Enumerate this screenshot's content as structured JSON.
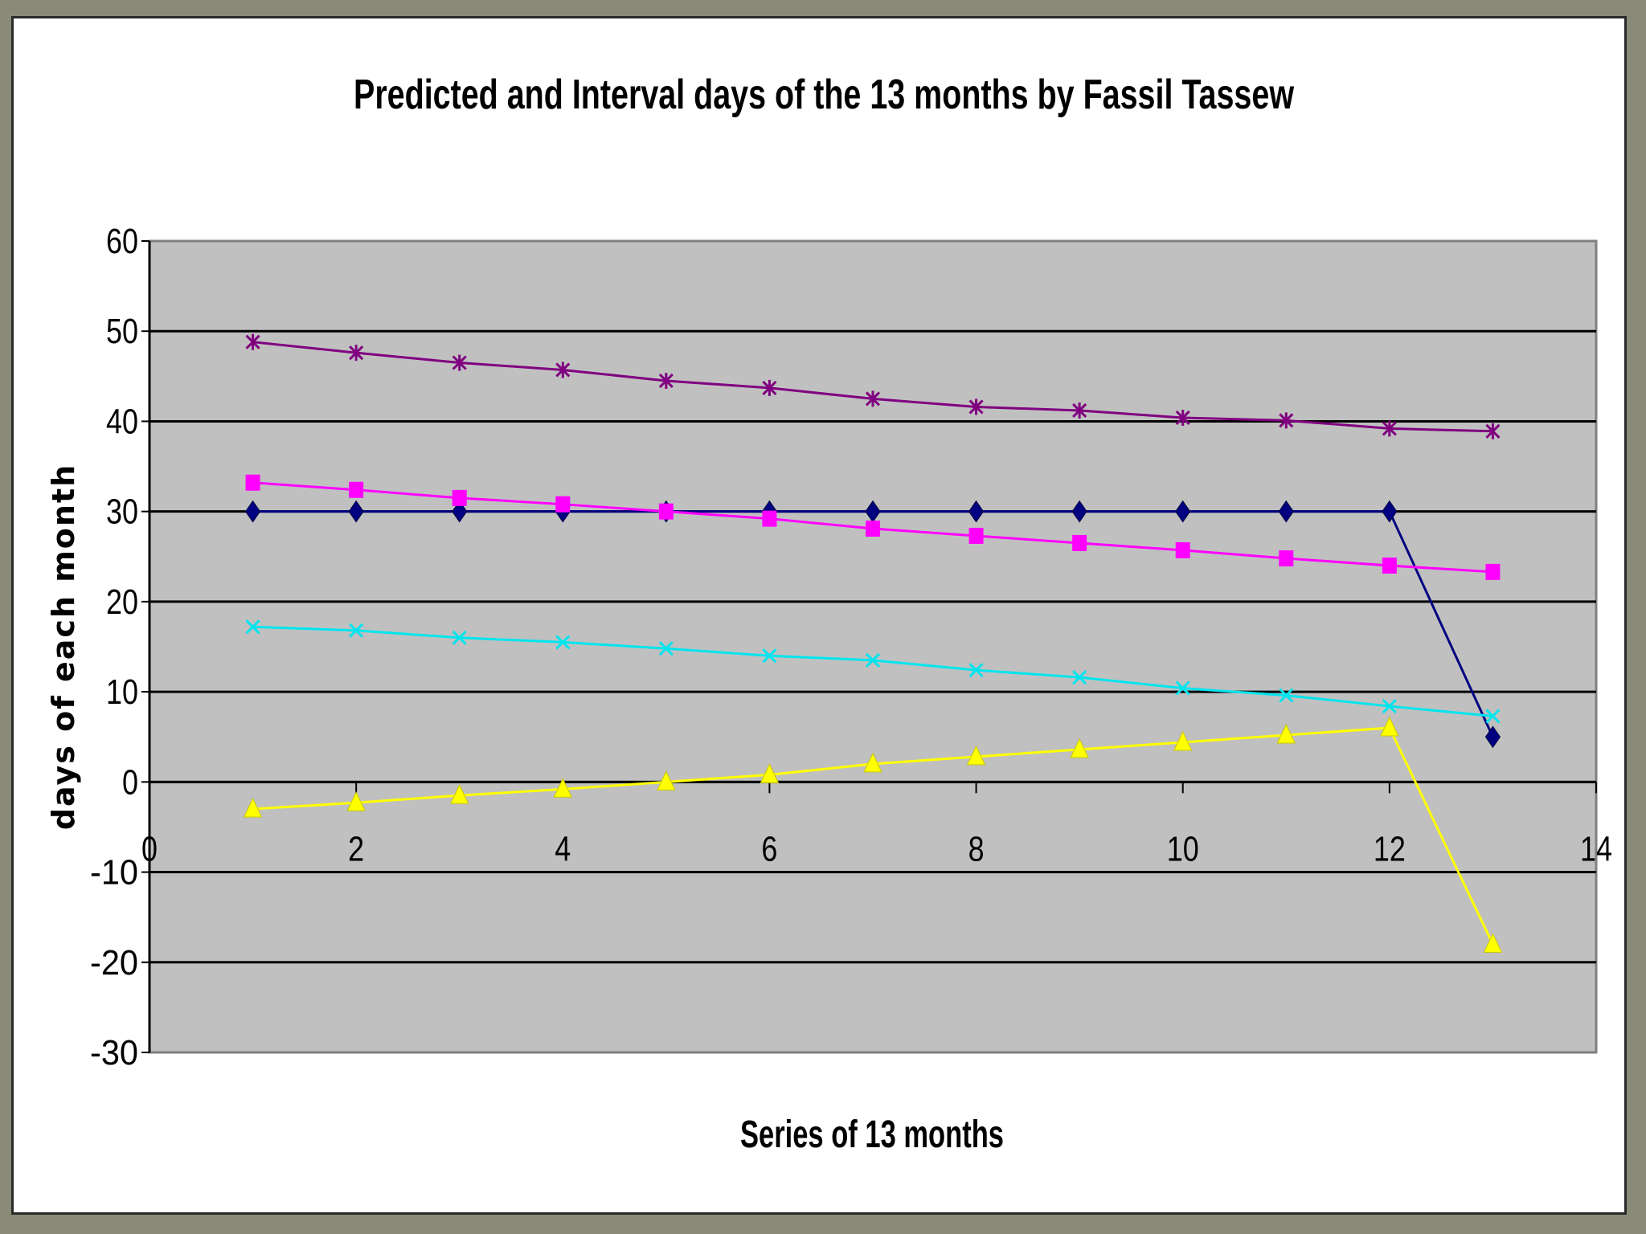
{
  "chart_data": {
    "type": "line",
    "title": "Predicted  and Interval days of the  13 months by Fassil Tassew",
    "xlabel": "Series of 13 months",
    "ylabel": "days of each month",
    "xlim": [
      0,
      14
    ],
    "ylim": [
      -30,
      60
    ],
    "x_ticks": [
      0,
      2,
      4,
      6,
      8,
      10,
      12,
      14
    ],
    "y_ticks": [
      -30,
      -20,
      -10,
      0,
      10,
      20,
      30,
      40,
      50,
      60
    ],
    "grid": true,
    "legend": "none",
    "plot_background": "#c0c0c0",
    "x": [
      1,
      2,
      3,
      4,
      5,
      6,
      7,
      8,
      9,
      10,
      11,
      12,
      13
    ],
    "series": [
      {
        "color": "#000080",
        "marker": "diamond",
        "values": [
          30,
          30,
          30,
          30,
          30,
          30,
          30,
          30,
          30,
          30,
          30,
          30,
          5
        ]
      },
      {
        "color": "#ff00ff",
        "marker": "square",
        "values": [
          33.2,
          32.4,
          31.5,
          30.8,
          30.0,
          29.2,
          28.1,
          27.3,
          26.5,
          25.7,
          24.8,
          24.0,
          23.3
        ]
      },
      {
        "color": "#ffff00",
        "marker": "triangle",
        "values": [
          -3.0,
          -2.3,
          -1.5,
          -0.8,
          0.0,
          0.8,
          2.0,
          2.8,
          3.6,
          4.4,
          5.2,
          6.0,
          -18.0
        ]
      },
      {
        "color": "#00e5ee",
        "marker": "x",
        "values": [
          17.2,
          16.8,
          16.0,
          15.5,
          14.8,
          14.0,
          13.5,
          12.4,
          11.6,
          10.4,
          9.6,
          8.4,
          7.3
        ]
      },
      {
        "color": "#800080",
        "marker": "star",
        "values": [
          48.8,
          47.6,
          46.5,
          45.7,
          44.5,
          43.7,
          42.5,
          41.6,
          41.2,
          40.4,
          40.1,
          39.2,
          38.9
        ]
      }
    ]
  }
}
